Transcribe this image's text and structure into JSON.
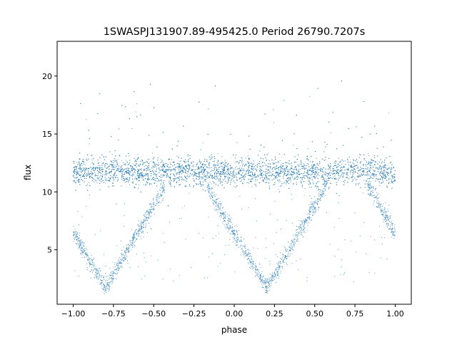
{
  "chart_data": {
    "type": "scatter",
    "title": "1SWASPJ131907.89-495425.0 Period 26790.7207s",
    "xlabel": "phase",
    "ylabel": "flux",
    "xlim": [
      -1.1,
      1.1
    ],
    "ylim": [
      0.3,
      23.0
    ],
    "xticks": [
      -1.0,
      -0.75,
      -0.5,
      -0.25,
      0.0,
      0.25,
      0.5,
      0.75,
      1.0
    ],
    "xtick_labels": [
      "−1.00",
      "−0.75",
      "−0.50",
      "−0.25",
      "0.00",
      "0.25",
      "0.50",
      "0.75",
      "1.00"
    ],
    "yticks": [
      5,
      10,
      15,
      20
    ],
    "ytick_labels": [
      "5",
      "10",
      "15",
      "20"
    ],
    "grid": false,
    "legend": "none",
    "point_color": "#1f77b4",
    "baseline_flux": 11.7,
    "baseline_spread": 1.1,
    "eclipse_minima": [
      {
        "phase": -0.8,
        "flux": 1.7
      },
      {
        "phase": 0.2,
        "flux": 1.7
      }
    ],
    "eclipse_half_width": 0.37,
    "phase_range": [
      -1.0,
      1.0
    ]
  }
}
